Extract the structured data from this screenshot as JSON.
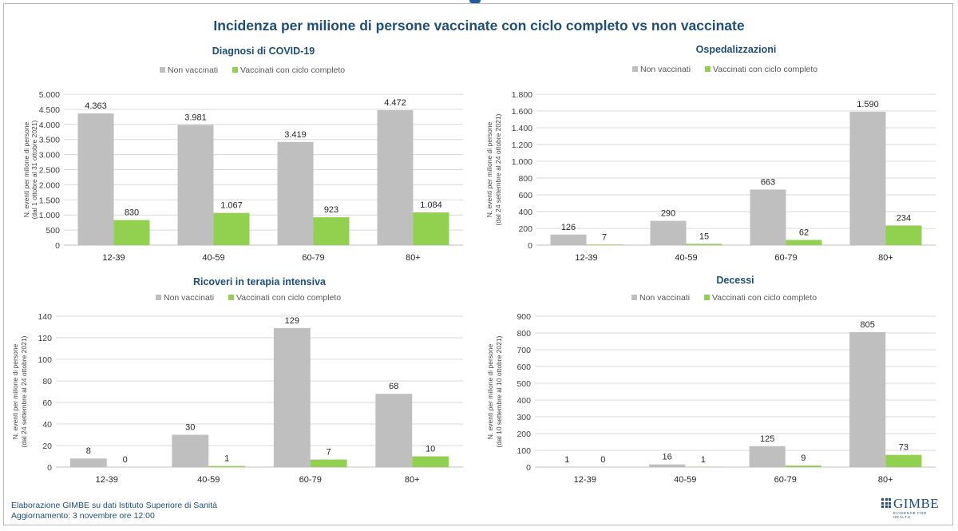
{
  "page": {
    "title": "Incidenza per milione di persone vaccinate con ciclo completo vs non vaccinate",
    "footer_line1": "Elaborazione GIMBE su dati Istituto Superiore di Sanità",
    "footer_line2": "Aggiornamento: 3 novembre ore 12:00",
    "logo_text": "GIMBE",
    "logo_tagline": "EVIDENCE FOR HEALTH"
  },
  "colors": {
    "non_vaccinati": "#bfbfbf",
    "vaccinati": "#92d050",
    "title": "#1f4e79",
    "grid": "#d9d9d9"
  },
  "chart_data": [
    {
      "type": "bar",
      "title": "Diagnosi di COVID-19",
      "ylabel": "N. eventi per milione di persone",
      "ylabel2": "(dal 1  ottobre al 31  ottobre 2021)",
      "categories": [
        "12-39",
        "40-59",
        "60-79",
        "80+"
      ],
      "ylim": [
        0,
        5000
      ],
      "yticks": [
        0,
        500,
        1000,
        1500,
        2000,
        2500,
        3000,
        3500,
        4000,
        4500,
        5000
      ],
      "ytick_labels": [
        "0",
        "500",
        "1.000",
        "1.500",
        "2.000",
        "2.500",
        "3.000",
        "3.500",
        "4.000",
        "4.500",
        "5.000"
      ],
      "legend_position": "top",
      "grid": true,
      "series": [
        {
          "name": "Non vaccinati",
          "values": [
            4363,
            3981,
            3419,
            4472
          ],
          "labels": [
            "4.363",
            "3.981",
            "3.419",
            "4.472"
          ]
        },
        {
          "name": "Vaccinati con ciclo completo",
          "values": [
            830,
            1067,
            923,
            1084
          ],
          "labels": [
            "830",
            "1.067",
            "923",
            "1.084"
          ]
        }
      ]
    },
    {
      "type": "bar",
      "title": "Ospedalizzazioni",
      "ylabel": "N. eventi per milione di persone",
      "ylabel2": "(dal 24  settembre al 24  ottobre 2021)",
      "categories": [
        "12-39",
        "40-59",
        "60-79",
        "80+"
      ],
      "ylim": [
        0,
        1800
      ],
      "yticks": [
        0,
        200,
        400,
        600,
        800,
        1000,
        1200,
        1400,
        1600,
        1800
      ],
      "ytick_labels": [
        "0",
        "200",
        "400",
        "600",
        "800",
        "1.000",
        "1.200",
        "1.400",
        "1.600",
        "1.800"
      ],
      "legend_position": "top",
      "grid": true,
      "series": [
        {
          "name": "Non vaccinati",
          "values": [
            126,
            290,
            663,
            1590
          ],
          "labels": [
            "126",
            "290",
            "663",
            "1.590"
          ]
        },
        {
          "name": "Vaccinati con ciclo completo",
          "values": [
            7,
            15,
            62,
            234
          ],
          "labels": [
            "7",
            "15",
            "62",
            "234"
          ]
        }
      ]
    },
    {
      "type": "bar",
      "title": "Ricoveri in terapia intensiva",
      "ylabel": "N. eventi per milione di persone",
      "ylabel2": "(dal 24  settembre al 24  ottobre 2021)",
      "categories": [
        "12-39",
        "40-59",
        "60-79",
        "80+"
      ],
      "ylim": [
        0,
        140
      ],
      "yticks": [
        0,
        20,
        40,
        60,
        80,
        100,
        120,
        140
      ],
      "ytick_labels": [
        "0",
        "20",
        "40",
        "60",
        "80",
        "100",
        "120",
        "140"
      ],
      "legend_position": "top",
      "grid": true,
      "series": [
        {
          "name": "Non vaccinati",
          "values": [
            8,
            30,
            129,
            68
          ],
          "labels": [
            "8",
            "30",
            "129",
            "68"
          ]
        },
        {
          "name": "Vaccinati con ciclo completo",
          "values": [
            0,
            1,
            7,
            10
          ],
          "labels": [
            "0",
            "1",
            "7",
            "10"
          ]
        }
      ]
    },
    {
      "type": "bar",
      "title": "Decessi",
      "ylabel": "N. eventi per milione di persone",
      "ylabel2": "(dal 10  settembre al 10  ottobre 2021)",
      "categories": [
        "12-39",
        "40-59",
        "60-79",
        "80+"
      ],
      "ylim": [
        0,
        900
      ],
      "yticks": [
        0,
        100,
        200,
        300,
        400,
        500,
        600,
        700,
        800,
        900
      ],
      "ytick_labels": [
        "0",
        "100",
        "200",
        "300",
        "400",
        "500",
        "600",
        "700",
        "800",
        "900"
      ],
      "legend_position": "top",
      "grid": true,
      "series": [
        {
          "name": "Non vaccinati",
          "values": [
            1,
            16,
            125,
            805
          ],
          "labels": [
            "1",
            "16",
            "125",
            "805"
          ]
        },
        {
          "name": "Vaccinati con ciclo completo",
          "values": [
            0,
            1,
            9,
            73
          ],
          "labels": [
            "0",
            "1",
            "9",
            "73"
          ]
        }
      ]
    }
  ]
}
